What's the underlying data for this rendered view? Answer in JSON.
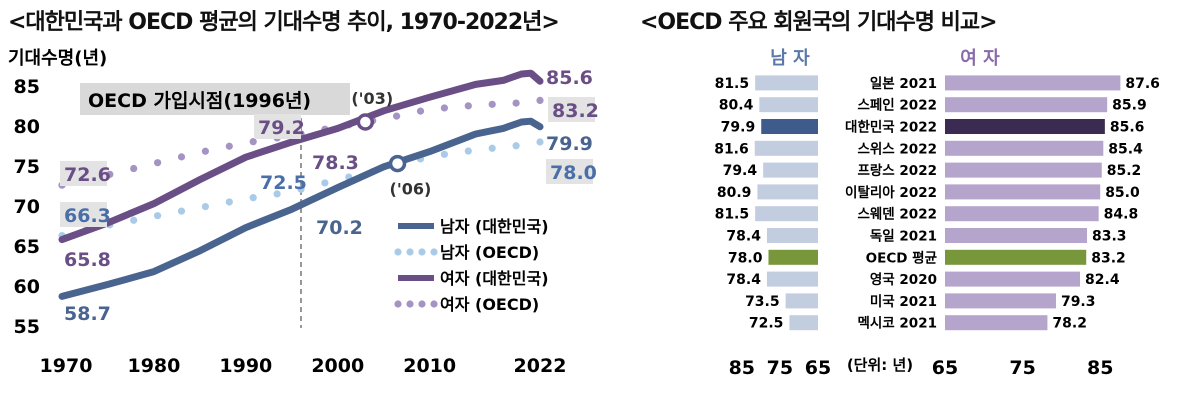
{
  "left": {
    "title": "<대한민국과 OECD 평균의 기대수명 추이, 1970-2022년>",
    "ylabel": "기대수명(년)",
    "join_label": "OECD 가입시점(1996년)",
    "marker_03": "('03)",
    "marker_06": "('06)",
    "legend": [
      "남자 (대한민국)",
      "남자 (OECD)",
      "여자 (대한민국)",
      "여자 (OECD)"
    ]
  },
  "right": {
    "title": "<OECD 주요 회원국의 기대수명 비교>",
    "male_header": "남 자",
    "female_header": "여 자",
    "unit_label": "(단위: 년)"
  },
  "colors": {
    "kr_male": "#4a6490",
    "oecd_male": "#a9cbe8",
    "kr_female": "#6a4e86",
    "oecd_female": "#a593c3",
    "bar_male": "#c3cde0",
    "bar_male_kr": "#3f5b8c",
    "bar_oecd": "#78963a",
    "bar_female": "#b5a4cc",
    "bar_female_kr": "#3b2a52"
  },
  "chart_data": [
    {
      "type": "line",
      "title": "<대한민국과 OECD 평균의 기대수명 추이, 1970-2022년>",
      "ylabel": "기대수명(년)",
      "xlim": [
        1970,
        2022
      ],
      "ylim": [
        55,
        87
      ],
      "yticks": [
        55,
        60,
        65,
        70,
        75,
        80,
        85
      ],
      "xticks": [
        1970,
        1980,
        1990,
        2000,
        2010,
        2022
      ],
      "grid": false,
      "legend_position": "bottom-right",
      "series": [
        {
          "name": "남자 (대한민국)",
          "style": "solid",
          "x": [
            1970,
            1975,
            1980,
            1985,
            1990,
            1995,
            2000,
            2005,
            2010,
            2015,
            2018,
            2020,
            2021,
            2022
          ],
          "y": [
            58.7,
            60.2,
            61.8,
            64.4,
            67.3,
            69.6,
            72.3,
            74.9,
            76.8,
            79.0,
            79.7,
            80.5,
            80.6,
            79.9
          ]
        },
        {
          "name": "남자 (OECD)",
          "style": "dotted",
          "x": [
            1970,
            1975,
            1980,
            1985,
            1990,
            1995,
            2000,
            2005,
            2010,
            2015,
            2020,
            2022
          ],
          "y": [
            66.3,
            67.6,
            68.7,
            69.8,
            70.9,
            71.8,
            73.3,
            74.6,
            76.2,
            77.0,
            77.6,
            78.0
          ]
        },
        {
          "name": "여자 (대한민국)",
          "style": "solid",
          "x": [
            1970,
            1975,
            1980,
            1985,
            1990,
            1995,
            2000,
            2005,
            2010,
            2015,
            2018,
            2020,
            2021,
            2022
          ],
          "y": [
            65.8,
            67.9,
            70.3,
            73.3,
            76.1,
            78.0,
            79.7,
            81.9,
            83.6,
            85.2,
            85.7,
            86.5,
            86.6,
            85.6
          ]
        },
        {
          "name": "여자 (OECD)",
          "style": "dotted",
          "x": [
            1970,
            1975,
            1980,
            1985,
            1990,
            1995,
            2000,
            2005,
            2010,
            2015,
            2020,
            2022
          ],
          "y": [
            72.6,
            73.9,
            75.3,
            76.7,
            77.9,
            78.8,
            79.9,
            80.9,
            82.1,
            82.6,
            82.9,
            83.2
          ]
        }
      ],
      "annotations": [
        {
          "text": "72.6",
          "x": 1970,
          "y": 72.6
        },
        {
          "text": "66.3",
          "x": 1970,
          "y": 66.3
        },
        {
          "text": "65.8",
          "x": 1970,
          "y": 65.8
        },
        {
          "text": "58.7",
          "x": 1970,
          "y": 58.7
        },
        {
          "text": "79.2",
          "x": 1996,
          "y": 79.2
        },
        {
          "text": "78.3",
          "x": 1996,
          "y": 78.3
        },
        {
          "text": "72.5",
          "x": 1996,
          "y": 72.5
        },
        {
          "text": "70.2",
          "x": 1996,
          "y": 70.2
        },
        {
          "text": "85.6",
          "x": 2022,
          "y": 85.6
        },
        {
          "text": "83.2",
          "x": 2022,
          "y": 83.2
        },
        {
          "text": "79.9",
          "x": 2022,
          "y": 79.9
        },
        {
          "text": "78.0",
          "x": 2022,
          "y": 78.0
        }
      ],
      "vline": {
        "x": 1996,
        "label": "OECD 가입시점(1996년)"
      },
      "markers": [
        {
          "label": "('03)",
          "x": 2003,
          "y": 80.5,
          "series": "여자"
        },
        {
          "label": "('06)",
          "x": 2006.5,
          "y": 75.3,
          "series": "남자"
        }
      ]
    },
    {
      "type": "bar",
      "title": "<OECD 주요 회원국의 기대수명 비교>",
      "orientation": "horizontal",
      "unit": "(단위: 년)",
      "male_axis": {
        "ticks": [
          85,
          75,
          65
        ],
        "range": [
          65,
          88
        ],
        "reversed": true
      },
      "female_axis": {
        "ticks": [
          65,
          75,
          85
        ],
        "range": [
          65,
          89
        ]
      },
      "categories": [
        "일본 2021",
        "스페인 2022",
        "대한민국 2022",
        "스위스 2022",
        "프랑스 2022",
        "이탈리아 2022",
        "스웨덴 2022",
        "독일 2021",
        "OECD 평균",
        "영국 2020",
        "미국 2021",
        "멕시코 2021"
      ],
      "series": [
        {
          "name": "남 자",
          "values": [
            81.5,
            80.4,
            79.9,
            81.6,
            79.4,
            80.9,
            81.5,
            78.4,
            78.0,
            78.4,
            73.5,
            72.5
          ]
        },
        {
          "name": "여 자",
          "values": [
            87.6,
            85.9,
            85.6,
            85.4,
            85.2,
            85.0,
            84.8,
            83.3,
            83.2,
            82.4,
            79.3,
            78.2
          ]
        }
      ]
    }
  ]
}
